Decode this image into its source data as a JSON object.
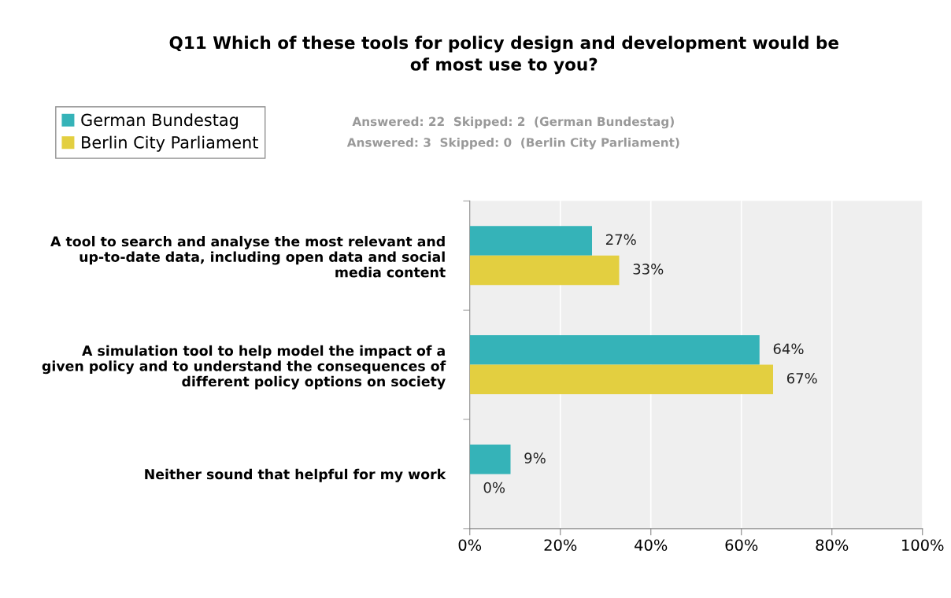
{
  "chart_data": {
    "type": "bar",
    "orientation": "horizontal",
    "title": "Q11 Which of these tools for policy design and development would be\nof most use to you?",
    "categories": [
      "A tool to search and analyse the most relevant and\nup-to-date data, including open data and social\nmedia content",
      "A simulation tool to help model the impact of a\ngiven policy and to understand the consequences of\ndifferent policy options on society",
      "Neither sound that helpful for my work"
    ],
    "series": [
      {
        "name": "German Bundestag",
        "color": "#35b3b8",
        "values": [
          27,
          64,
          9
        ],
        "value_labels": [
          "27%",
          "64%",
          "9%"
        ]
      },
      {
        "name": "Berlin City Parliament",
        "color": "#e3cf40",
        "values": [
          33,
          67,
          0
        ],
        "value_labels": [
          "33%",
          "67%",
          "0%"
        ]
      }
    ],
    "xlim": [
      0,
      100
    ],
    "xticks": [
      {
        "value": 0,
        "label": "0%"
      },
      {
        "value": 20,
        "label": "20%"
      },
      {
        "value": 40,
        "label": "40%"
      },
      {
        "value": 60,
        "label": "60%"
      },
      {
        "value": 80,
        "label": "80%"
      },
      {
        "value": 100,
        "label": "100%"
      }
    ],
    "grid": "x",
    "legend": "top left",
    "annotations": [
      "Answered: 22  Skipped: 2  (German Bundestag)",
      "Answered: 3  Skipped: 0  (Berlin City Parliament)"
    ]
  }
}
